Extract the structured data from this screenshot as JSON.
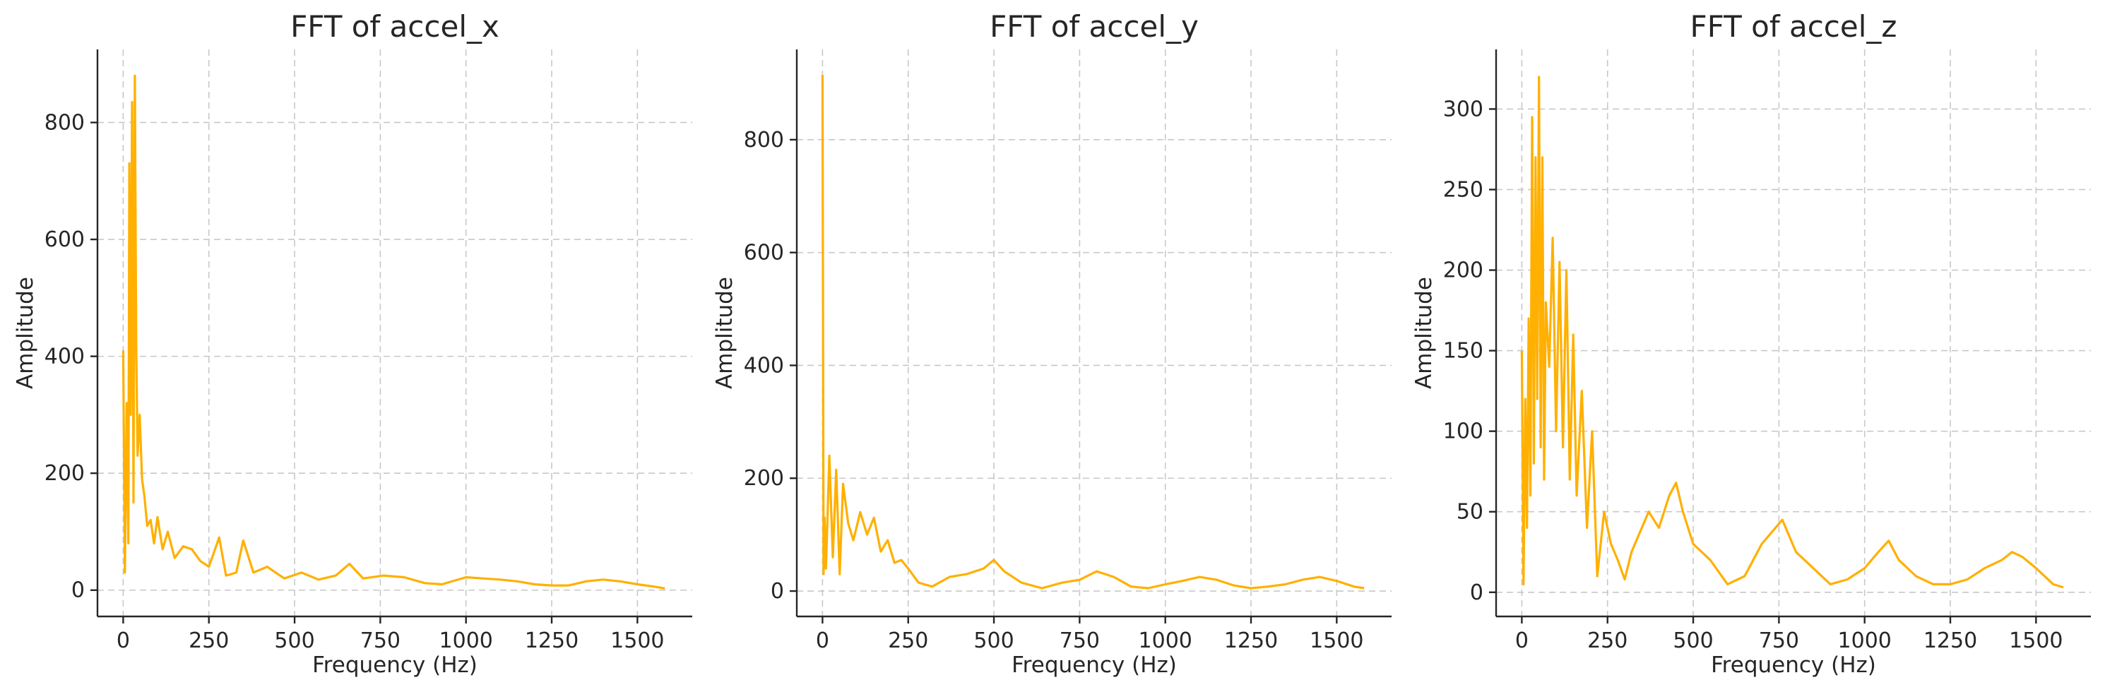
{
  "figure": {
    "line_color": "#ffb000",
    "grid": true
  },
  "chart_data": [
    {
      "type": "line",
      "title": "FFT of accel_x",
      "xlabel": "Frequency (Hz)",
      "ylabel": "Amplitude",
      "xlim": [
        -75,
        1660
      ],
      "ylim": [
        -45,
        925
      ],
      "xticks": [
        0,
        250,
        500,
        750,
        1000,
        1250,
        1500
      ],
      "xtick_labels": [
        "0",
        "250",
        "500",
        "750",
        "1000",
        "1250",
        "1500"
      ],
      "yticks": [
        0,
        200,
        400,
        600,
        800
      ],
      "ytick_labels": [
        "0",
        "200",
        "400",
        "600",
        "800"
      ],
      "series": [
        {
          "x": [
            0,
            5,
            10,
            15,
            18,
            22,
            26,
            30,
            34,
            38,
            42,
            48,
            55,
            62,
            70,
            80,
            90,
            100,
            115,
            130,
            150,
            175,
            200,
            225,
            250,
            280,
            300,
            330,
            350,
            380,
            420,
            470,
            520,
            570,
            620,
            660,
            700,
            760,
            820,
            880,
            930,
            1000,
            1050,
            1100,
            1150,
            1200,
            1250,
            1300,
            1350,
            1400,
            1450,
            1500,
            1550,
            1580
          ],
          "y": [
            410,
            30,
            320,
            80,
            730,
            300,
            835,
            150,
            880,
            420,
            230,
            300,
            190,
            160,
            110,
            120,
            80,
            125,
            70,
            100,
            55,
            75,
            70,
            50,
            40,
            90,
            25,
            30,
            85,
            30,
            40,
            20,
            30,
            18,
            25,
            45,
            20,
            25,
            22,
            12,
            10,
            22,
            20,
            18,
            15,
            10,
            8,
            8,
            15,
            18,
            15,
            10,
            6,
            3
          ]
        }
      ]
    },
    {
      "type": "line",
      "title": "FFT of accel_y",
      "xlabel": "Frequency (Hz)",
      "ylabel": "Amplitude",
      "xlim": [
        -75,
        1660
      ],
      "ylim": [
        -45,
        960
      ],
      "xticks": [
        0,
        250,
        500,
        750,
        1000,
        1250,
        1500
      ],
      "xtick_labels": [
        "0",
        "250",
        "500",
        "750",
        "1000",
        "1250",
        "1500"
      ],
      "yticks": [
        0,
        200,
        400,
        600,
        800
      ],
      "ytick_labels": [
        "0",
        "200",
        "400",
        "600",
        "800"
      ],
      "series": [
        {
          "x": [
            0,
            3,
            6,
            10,
            20,
            30,
            40,
            50,
            60,
            75,
            90,
            110,
            130,
            150,
            170,
            190,
            210,
            230,
            250,
            280,
            320,
            370,
            420,
            470,
            500,
            530,
            580,
            640,
            700,
            750,
            800,
            850,
            900,
            950,
            1000,
            1050,
            1100,
            1150,
            1200,
            1250,
            1300,
            1350,
            1400,
            1450,
            1500,
            1550,
            1580
          ],
          "y": [
            915,
            30,
            130,
            40,
            240,
            60,
            215,
            30,
            190,
            120,
            90,
            140,
            100,
            130,
            70,
            90,
            50,
            55,
            40,
            15,
            8,
            25,
            30,
            40,
            55,
            35,
            15,
            5,
            15,
            20,
            35,
            25,
            8,
            5,
            12,
            18,
            25,
            20,
            10,
            5,
            8,
            12,
            20,
            25,
            18,
            8,
            5
          ]
        }
      ]
    },
    {
      "type": "line",
      "title": "FFT of accel_z",
      "xlabel": "Frequency (Hz)",
      "ylabel": "Amplitude",
      "xlim": [
        -75,
        1660
      ],
      "ylim": [
        -15,
        337
      ],
      "xticks": [
        0,
        250,
        500,
        750,
        1000,
        1250,
        1500
      ],
      "xtick_labels": [
        "0",
        "250",
        "500",
        "750",
        "1000",
        "1250",
        "1500"
      ],
      "yticks": [
        0,
        50,
        100,
        150,
        200,
        250,
        300
      ],
      "ytick_labels": [
        "0",
        "50",
        "100",
        "150",
        "200",
        "250",
        "300"
      ],
      "series": [
        {
          "x": [
            0,
            5,
            10,
            15,
            20,
            25,
            30,
            35,
            40,
            45,
            50,
            55,
            60,
            65,
            70,
            80,
            90,
            100,
            110,
            120,
            130,
            140,
            150,
            160,
            175,
            190,
            205,
            220,
            240,
            260,
            280,
            300,
            320,
            340,
            370,
            400,
            430,
            450,
            470,
            500,
            550,
            600,
            650,
            700,
            740,
            760,
            800,
            850,
            900,
            950,
            1000,
            1040,
            1070,
            1100,
            1150,
            1200,
            1250,
            1300,
            1350,
            1400,
            1430,
            1460,
            1500,
            1550,
            1580
          ],
          "y": [
            150,
            5,
            120,
            40,
            170,
            60,
            295,
            80,
            270,
            120,
            320,
            90,
            270,
            70,
            180,
            140,
            220,
            100,
            205,
            90,
            200,
            70,
            160,
            60,
            125,
            40,
            100,
            10,
            50,
            30,
            20,
            8,
            25,
            35,
            50,
            40,
            60,
            68,
            50,
            30,
            20,
            5,
            10,
            30,
            40,
            45,
            25,
            15,
            5,
            8,
            15,
            25,
            32,
            20,
            10,
            5,
            5,
            8,
            15,
            20,
            25,
            22,
            15,
            5,
            3
          ]
        }
      ]
    }
  ]
}
